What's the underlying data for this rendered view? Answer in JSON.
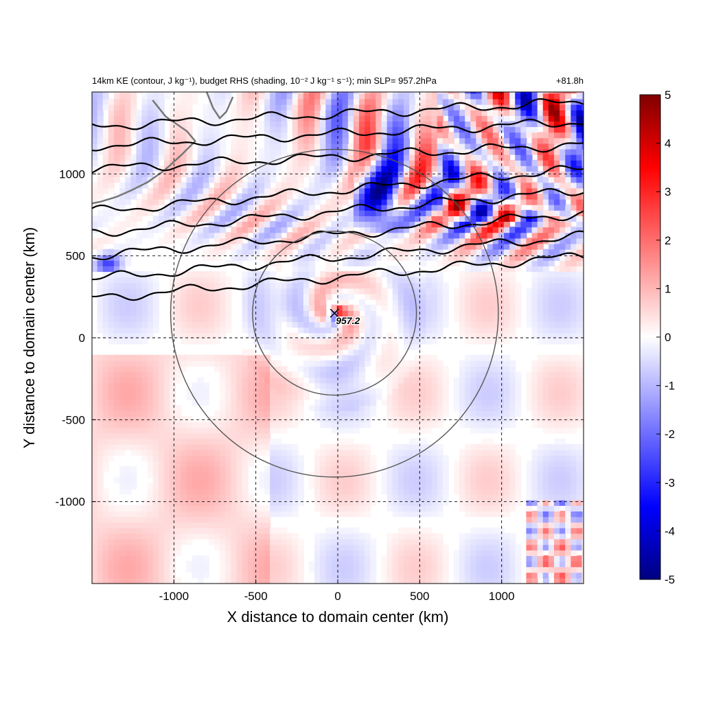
{
  "chart_data": {
    "type": "heatmap",
    "title": "14km KE (contour, J kg⁻¹), budget RHS (shading, 10⁻² J kg⁻¹ s⁻¹); min SLP= 957.2hPa",
    "title_right": "+81.8h",
    "xlabel": "X distance to domain center (km)",
    "ylabel": "Y distance to domain center (km)",
    "xlim": [
      -1500,
      1500
    ],
    "ylim": [
      -1500,
      1500
    ],
    "xticks": [
      -1000,
      -500,
      0,
      500,
      1000
    ],
    "yticks": [
      -1000,
      -500,
      0,
      500,
      1000
    ],
    "xtick_labels": [
      "-1000",
      "-500",
      "0",
      "500",
      "1000"
    ],
    "ytick_labels": [
      "-1000",
      "-500",
      "0",
      "500",
      "1000"
    ],
    "grid": true,
    "colorbar": {
      "min": -5,
      "max": 5,
      "ticks": [
        "5",
        "4",
        "3",
        "2",
        "1",
        "0",
        "-1",
        "-2",
        "-3",
        "-4",
        "-5"
      ],
      "colors": {
        "neg_end": "#000080",
        "neg_mid": "#0000ff",
        "zero": "#ffffff",
        "pos_mid": "#ff0000",
        "pos_end": "#800000"
      }
    },
    "storm_center": {
      "x": -20,
      "y": 150,
      "label": "957.2"
    },
    "range_rings": [
      {
        "center_x": -20,
        "center_y": 150,
        "radius_km": 500
      },
      {
        "center_x": -20,
        "center_y": 150,
        "radius_km": 1000
      }
    ],
    "ke_contours_y_at_right_edge": [
      1440,
      1320,
      1180,
      1030,
      900,
      760,
      620,
      500
    ],
    "colors": {
      "contour": "#000000",
      "ring": "#555555",
      "coast": "#777777"
    }
  }
}
